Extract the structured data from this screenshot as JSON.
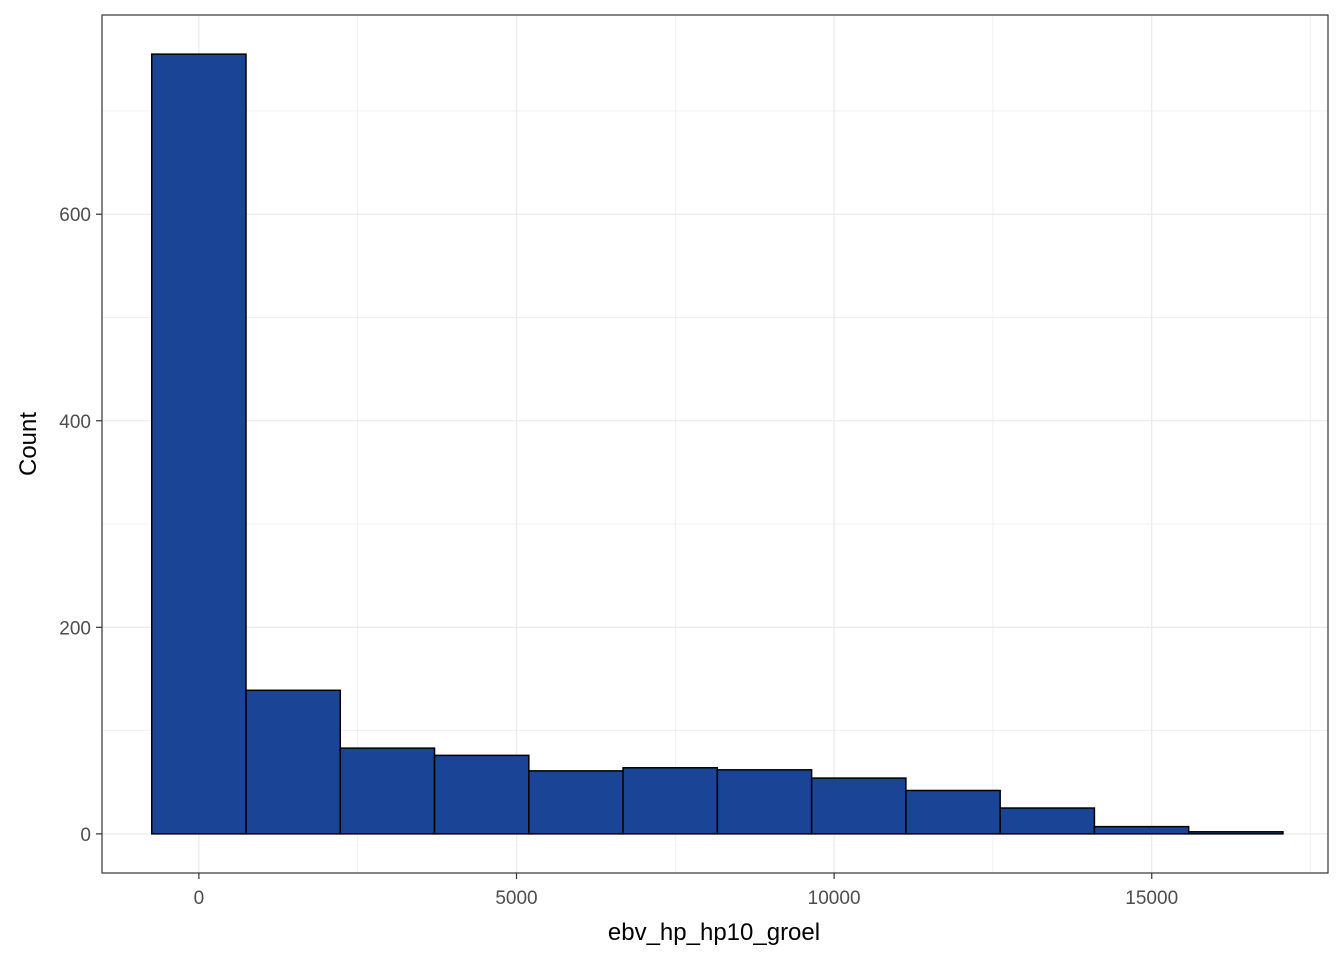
{
  "chart_data": {
    "type": "bar",
    "subtype": "histogram",
    "xlabel": "ebv_hp_hp10_groel",
    "ylabel": "Count",
    "xlim": [
      -1525,
      17775
    ],
    "ylim": [
      -37.9,
      792.9
    ],
    "x_ticks": [
      0,
      5000,
      10000,
      15000
    ],
    "y_ticks": [
      0,
      200,
      400,
      600
    ],
    "grid": true,
    "legend": "none",
    "bins": [
      {
        "x0": -742,
        "x1": 742,
        "count": 755
      },
      {
        "x0": 742,
        "x1": 2226,
        "count": 139
      },
      {
        "x0": 2226,
        "x1": 3710,
        "count": 83
      },
      {
        "x0": 3710,
        "x1": 5194,
        "count": 76
      },
      {
        "x0": 5194,
        "x1": 6678,
        "count": 61
      },
      {
        "x0": 6678,
        "x1": 8162,
        "count": 64
      },
      {
        "x0": 8162,
        "x1": 9646,
        "count": 62
      },
      {
        "x0": 9646,
        "x1": 11130,
        "count": 54
      },
      {
        "x0": 11130,
        "x1": 12614,
        "count": 42
      },
      {
        "x0": 12614,
        "x1": 14098,
        "count": 25
      },
      {
        "x0": 14098,
        "x1": 15582,
        "count": 7
      },
      {
        "x0": 15582,
        "x1": 17066,
        "count": 2
      }
    ],
    "colors": {
      "fill": "#1a4496",
      "outline": "#000000",
      "grid": "#ebebeb",
      "panel_border": "#333333",
      "tick_text": "#4d4d4d"
    }
  }
}
